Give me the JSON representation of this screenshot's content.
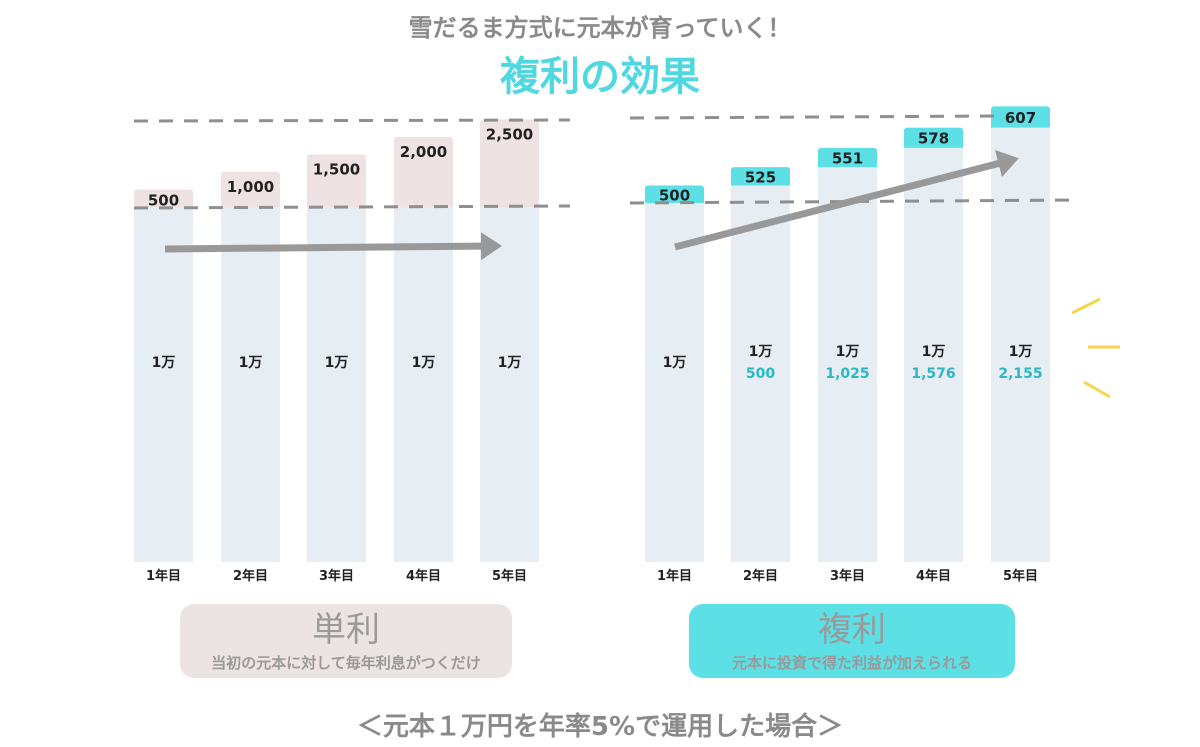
{
  "header": {
    "subtitle": "雪だるま方式に元本が育っていく！",
    "title": "複利の効果"
  },
  "colors": {
    "accent": "#4fd8e0",
    "interest_simple": "#eee2e2",
    "interest_compound": "#5ce0e6",
    "principal": "#e6edf3",
    "arrow": "#999999",
    "burst": "#f2d64b"
  },
  "chart_data": [
    {
      "type": "bar",
      "stacked": true,
      "categories": [
        "1年目",
        "2年目",
        "3年目",
        "4年目",
        "5年目"
      ],
      "series": [
        {
          "values": [
            10000,
            10000,
            10000,
            10000,
            10000
          ],
          "labels": [
            "1万",
            "1万",
            "1万",
            "1万",
            "1万"
          ]
        },
        {
          "values": [
            500,
            1000,
            1500,
            2000,
            2500
          ],
          "labels": [
            "500",
            "1,000",
            "1,500",
            "2,000",
            "2,500"
          ]
        }
      ],
      "legend": {
        "title": "単利",
        "description": "当初の元本に対して毎年利息がつくだけ"
      }
    },
    {
      "type": "bar",
      "stacked": true,
      "categories": [
        "1年目",
        "2年目",
        "3年目",
        "4年目",
        "5年目"
      ],
      "series": [
        {
          "values": [
            10000,
            10500,
            11025,
            11576,
            12155
          ],
          "labels": [
            "1万",
            "1万",
            "1万",
            "1万",
            "1万"
          ],
          "sublabels": [
            "",
            "500",
            "1,025",
            "1,576",
            "2,155"
          ]
        },
        {
          "values": [
            500,
            525,
            551,
            578,
            607
          ],
          "labels": [
            "500",
            "525",
            "551",
            "578",
            "607"
          ]
        }
      ],
      "legend": {
        "title": "複利",
        "description": "元本に投資で得た利益が加えられる"
      }
    }
  ],
  "footnote": "＜元本１万円を年率5%で運用した場合＞"
}
